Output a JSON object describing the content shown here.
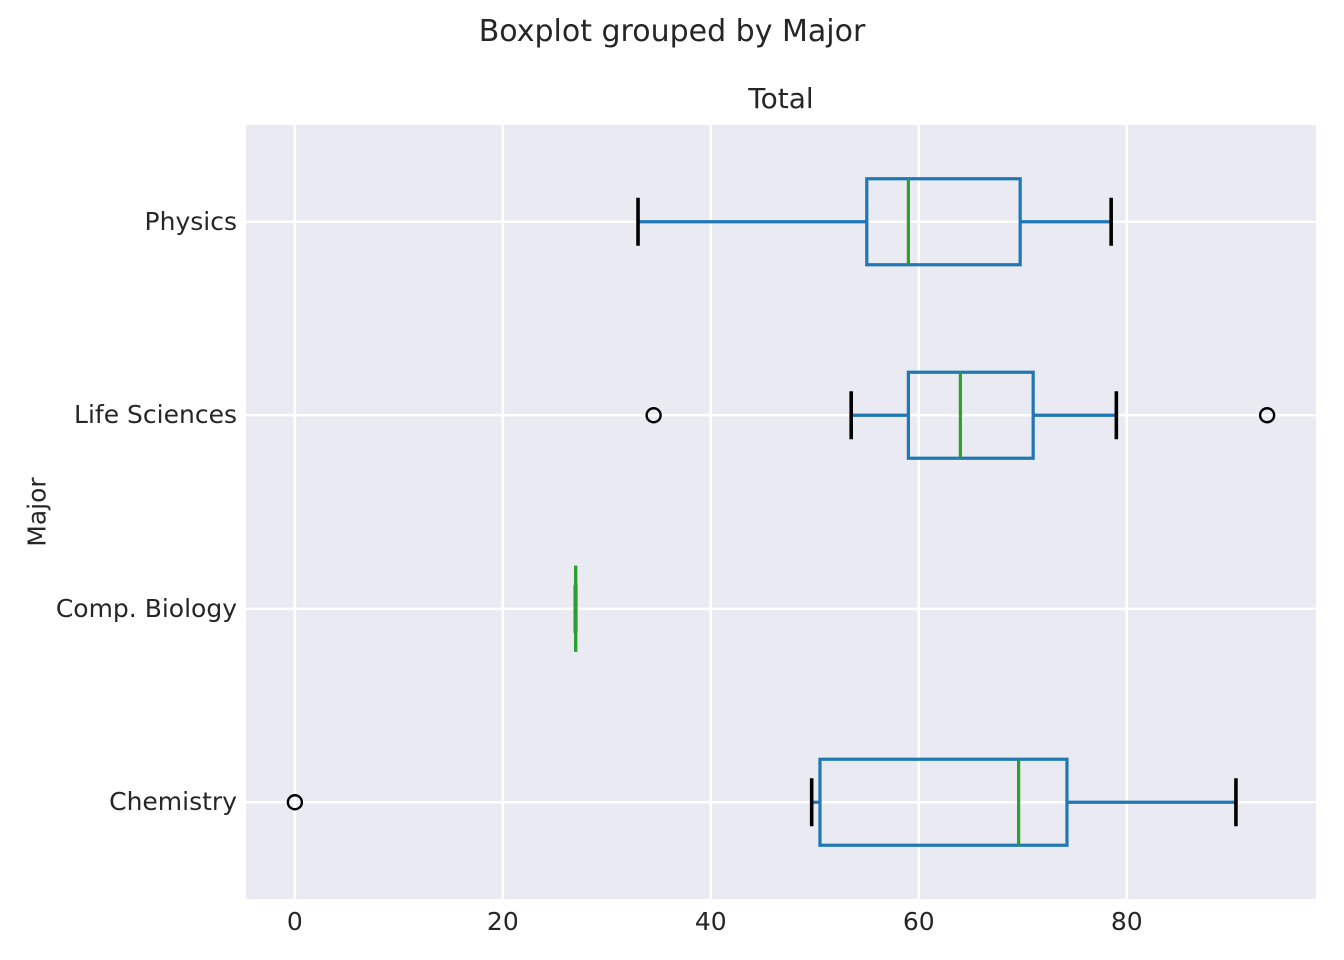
{
  "figure": {
    "suptitle": "Boxplot grouped by Major",
    "axes_title": "Total",
    "ylabel": "Major"
  },
  "chart_data": {
    "type": "boxplot",
    "orientation": "horizontal",
    "suptitle": "Boxplot grouped by Major",
    "title": "Total",
    "ylabel": "Major",
    "xlabel": "",
    "x_ticks": [
      0,
      20,
      40,
      60,
      80
    ],
    "xlim": [
      -4.7,
      98.2
    ],
    "grid": true,
    "categories_top_to_bottom": [
      "Physics",
      "Life Sciences",
      "Comp. Biology",
      "Chemistry"
    ],
    "groups": [
      {
        "label": "Physics",
        "whisker_low": 33,
        "q1": 55,
        "median": 59,
        "q3": 69.75,
        "whisker_high": 78.5,
        "outliers": []
      },
      {
        "label": "Life Sciences",
        "whisker_low": 53.5,
        "q1": 59,
        "median": 64,
        "q3": 71,
        "whisker_high": 79,
        "outliers": [
          34.5,
          93.5
        ]
      },
      {
        "label": "Comp. Biology",
        "whisker_low": 27,
        "q1": 27,
        "median": 27,
        "q3": 27,
        "whisker_high": 27,
        "outliers": []
      },
      {
        "label": "Chemistry",
        "whisker_low": 49.7,
        "q1": 50.5,
        "median": 69.6,
        "q3": 74.25,
        "whisker_high": 90.5,
        "outliers": [
          0
        ]
      }
    ],
    "colors": {
      "box": "#1f77b4",
      "median": "#2ca02c",
      "whisker": "#1f77b4",
      "cap": "#000000",
      "outlier": "#000000",
      "plot_background": "#eaeaf2",
      "gridline": "#ffffff",
      "text": "#262626"
    }
  }
}
